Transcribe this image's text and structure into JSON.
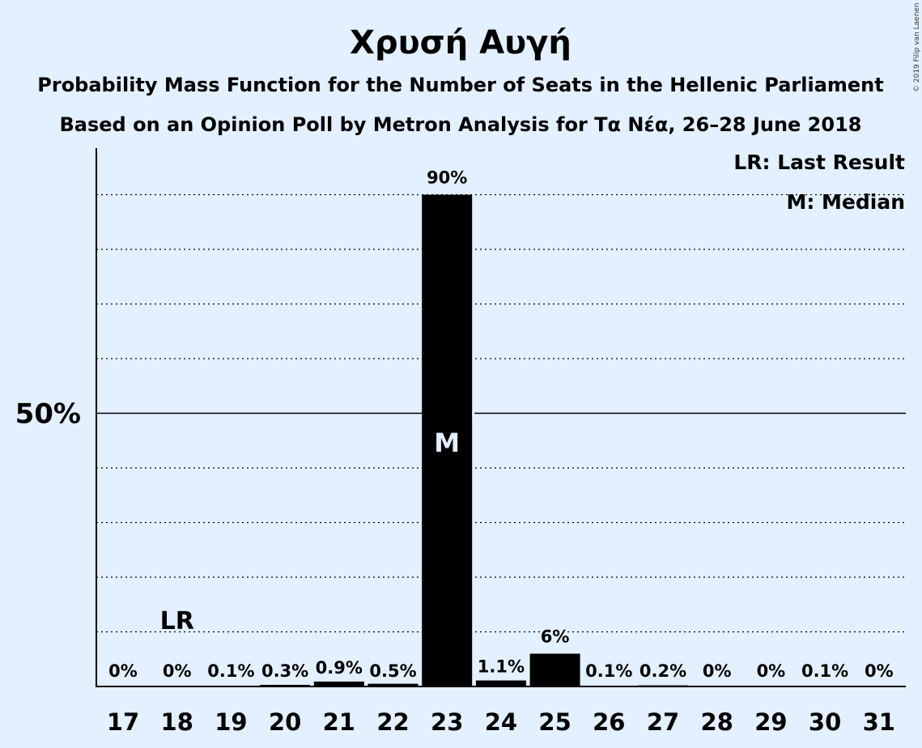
{
  "chart_data": {
    "type": "bar",
    "title": "Χρυσή Αυγή",
    "subtitle_1": "Probability Mass Function for the Number of Seats in the Hellenic Parliament",
    "subtitle_2": "Based on an Opinion Poll by Metron Analysis for Τα Νέα, 26–28 June 2018",
    "categories": [
      "17",
      "18",
      "19",
      "20",
      "21",
      "22",
      "23",
      "24",
      "25",
      "26",
      "27",
      "28",
      "29",
      "30",
      "31"
    ],
    "values": [
      0,
      0,
      0.1,
      0.3,
      0.9,
      0.5,
      90,
      1.1,
      6,
      0.1,
      0.2,
      0,
      0,
      0.1,
      0
    ],
    "data_labels": [
      "0%",
      "0%",
      "0.1%",
      "0.3%",
      "0.9%",
      "0.5%",
      "90%",
      "1.1%",
      "6%",
      "0.1%",
      "0.2%",
      "0%",
      "0%",
      "0.1%",
      "0%"
    ],
    "ylim": [
      0,
      100
    ],
    "y_ticks": [
      {
        "value": 50,
        "label": "50%"
      }
    ],
    "gridlines_every": 10,
    "last_result": {
      "category": "18",
      "label": "LR"
    },
    "median": {
      "category": "23",
      "label": "M"
    },
    "legend": {
      "placement": "top-right",
      "entries": [
        "LR: Last Result",
        "M: Median"
      ]
    },
    "bar_color": "#000000",
    "background_color": "#e3f0ff"
  },
  "copyright": "© 2019 Filip van Laenen"
}
